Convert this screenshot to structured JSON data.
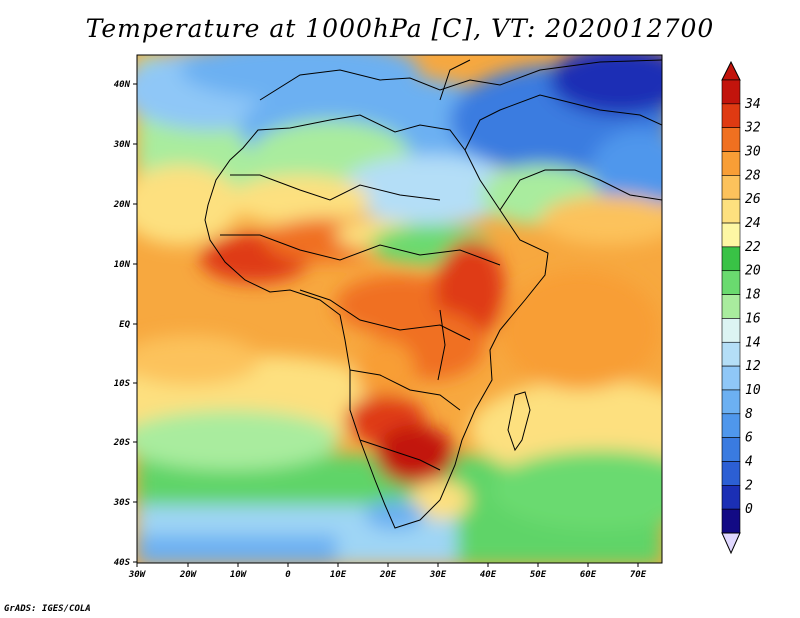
{
  "title": "Temperature at 1000hPa [C], VT: 2020012700",
  "credit": "GrADS: IGES/COLA",
  "map": {
    "lon_range": [
      -30,
      75
    ],
    "lat_range": [
      -40,
      45
    ],
    "lat_ticks": [
      "40N",
      "30N",
      "20N",
      "10N",
      "EQ",
      "10S",
      "20S",
      "30S",
      "40S"
    ],
    "lon_ticks": [
      "30W",
      "20W",
      "10W",
      "0",
      "10E",
      "20E",
      "30E",
      "40E",
      "50E",
      "60E",
      "70E"
    ]
  },
  "colorbar": {
    "levels": [
      "0",
      "2",
      "4",
      "6",
      "8",
      "10",
      "12",
      "14",
      "16",
      "18",
      "20",
      "22",
      "24",
      "26",
      "28",
      "30",
      "32",
      "34"
    ],
    "colors": [
      "#120a84",
      "#1b2fb5",
      "#2c5fd4",
      "#3a7be0",
      "#4f97ec",
      "#6cb0f2",
      "#8fc7f7",
      "#b4def7",
      "#dcf4f3",
      "#a9ec9e",
      "#6ada6f",
      "#39c246",
      "#fdf7a4",
      "#fde07f",
      "#fcc25c",
      "#f89e36",
      "#f07020",
      "#df3a12",
      "#c2140c"
    ],
    "under_color": "#e0d8ff"
  }
}
